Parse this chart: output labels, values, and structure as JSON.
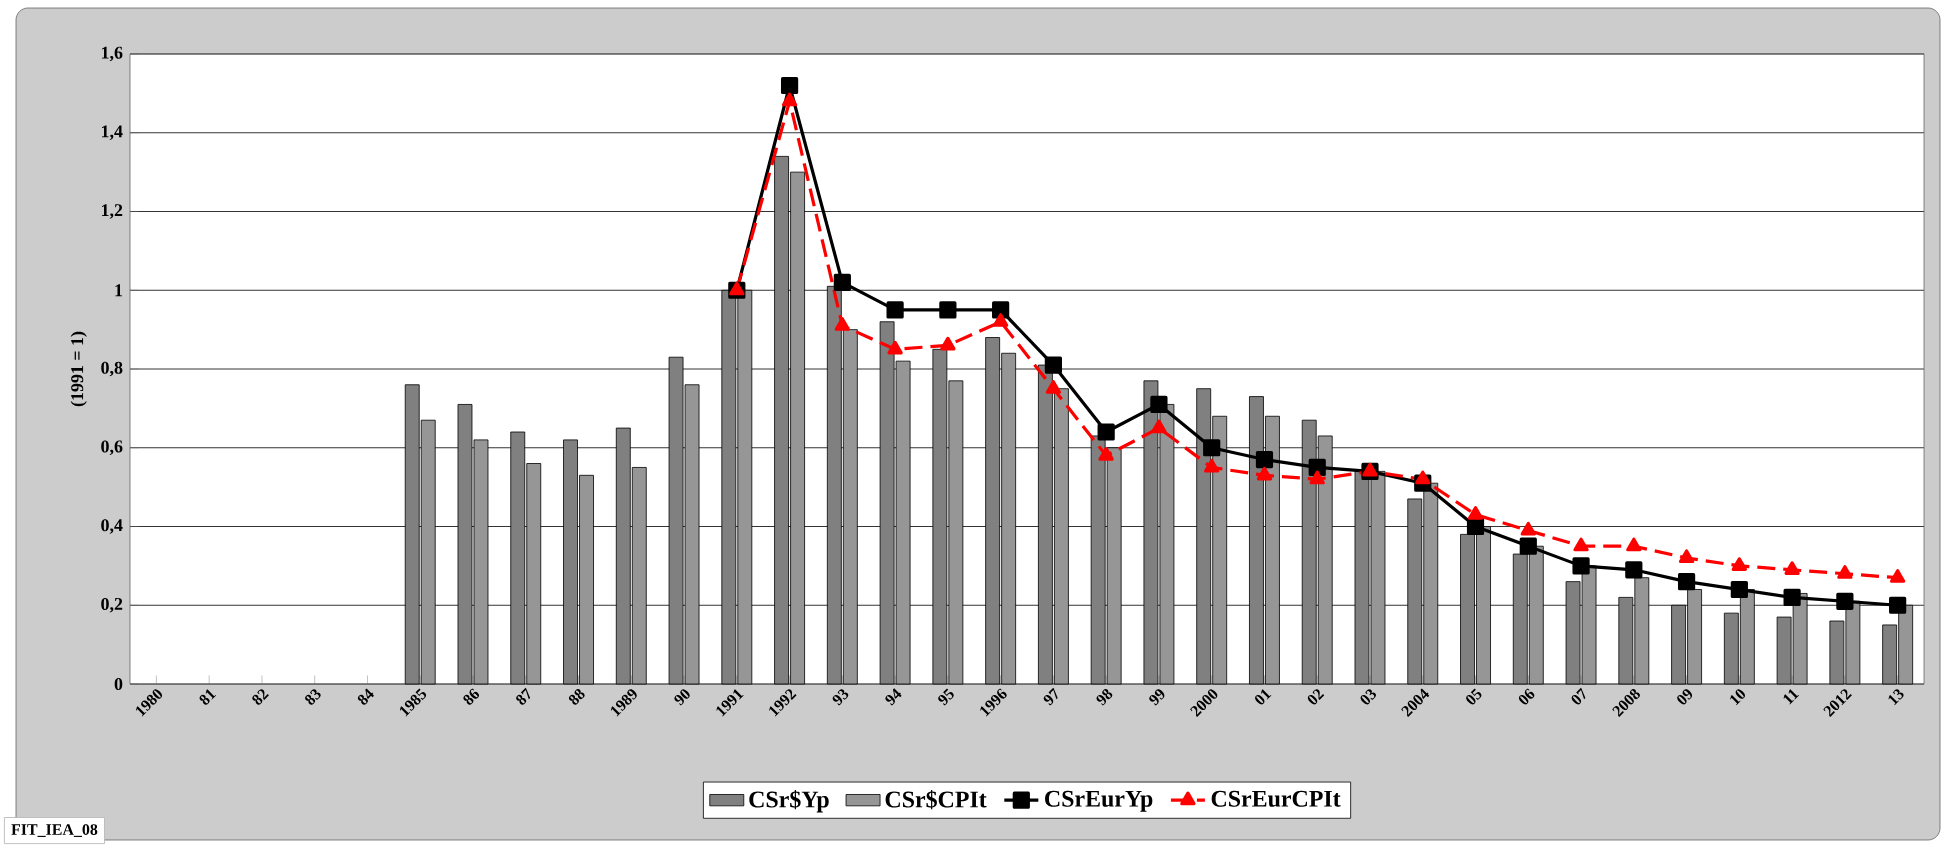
{
  "chart_data": {
    "type": "bar",
    "ylabel": "(1991 = 1)",
    "categories": [
      "1980",
      "81",
      "82",
      "83",
      "84",
      "1985",
      "86",
      "87",
      "88",
      "1989",
      "90",
      "1991",
      "1992",
      "93",
      "94",
      "95",
      "1996",
      "97",
      "98",
      "99",
      "2000",
      "01",
      "02",
      "03",
      "2004",
      "05",
      "06",
      "07",
      "2008",
      "09",
      "10",
      "11",
      "2012",
      "13"
    ],
    "series": [
      {
        "name": "CSr$Yp",
        "color": "#808080",
        "values": [
          null,
          null,
          null,
          null,
          null,
          0.76,
          0.71,
          0.64,
          0.62,
          0.65,
          0.83,
          1.0,
          1.34,
          1.01,
          0.92,
          0.85,
          0.88,
          0.81,
          0.63,
          0.77,
          0.75,
          0.73,
          0.67,
          0.54,
          0.47,
          0.38,
          0.33,
          0.26,
          0.22,
          0.2,
          0.18,
          0.17,
          0.16,
          0.15
        ]
      },
      {
        "name": "CSr$CPIt",
        "color": "#969696",
        "values": [
          null,
          null,
          null,
          null,
          null,
          0.67,
          0.62,
          0.56,
          0.53,
          0.55,
          0.76,
          1.0,
          1.3,
          0.9,
          0.82,
          0.77,
          0.84,
          0.75,
          0.6,
          0.71,
          0.68,
          0.68,
          0.63,
          0.54,
          0.51,
          0.4,
          0.35,
          0.3,
          0.27,
          0.24,
          0.24,
          0.23,
          0.21,
          0.2
        ]
      },
      {
        "name": "CSrEurYp",
        "type": "line",
        "color": "#000000",
        "marker": "square",
        "line_style": "solid",
        "values": [
          null,
          null,
          null,
          null,
          null,
          null,
          null,
          null,
          null,
          null,
          null,
          1.0,
          1.52,
          1.02,
          0.95,
          0.95,
          0.95,
          0.81,
          0.64,
          0.71,
          0.6,
          0.57,
          0.55,
          0.54,
          0.51,
          0.4,
          0.35,
          0.3,
          0.29,
          0.26,
          0.24,
          0.22,
          0.21,
          0.2
        ]
      },
      {
        "name": "CSrEurCPIt",
        "type": "line",
        "color": "#ff0000",
        "marker": "triangle",
        "line_style": "dashed",
        "values": [
          null,
          null,
          null,
          null,
          null,
          null,
          null,
          null,
          null,
          null,
          null,
          1.0,
          1.48,
          0.91,
          0.85,
          0.86,
          0.92,
          0.75,
          0.58,
          0.65,
          0.55,
          0.53,
          0.52,
          0.54,
          0.52,
          0.43,
          0.39,
          0.35,
          0.35,
          0.32,
          0.3,
          0.29,
          0.28,
          0.27
        ]
      }
    ],
    "ylim": [
      0,
      1.6
    ],
    "yticks": [
      {
        "value": 0,
        "label": "0"
      },
      {
        "value": 0.2,
        "label": "0,2"
      },
      {
        "value": 0.4,
        "label": "0,4"
      },
      {
        "value": 0.6,
        "label": "0,6"
      },
      {
        "value": 0.8,
        "label": "0,8"
      },
      {
        "value": 1,
        "label": "1"
      },
      {
        "value": 1.2,
        "label": "1,2"
      },
      {
        "value": 1.4,
        "label": "1,4"
      },
      {
        "value": 1.6,
        "label": "1,6"
      }
    ],
    "grid": "y",
    "legend": "bottom",
    "annotations": [
      "FIT_IEA_08"
    ]
  }
}
